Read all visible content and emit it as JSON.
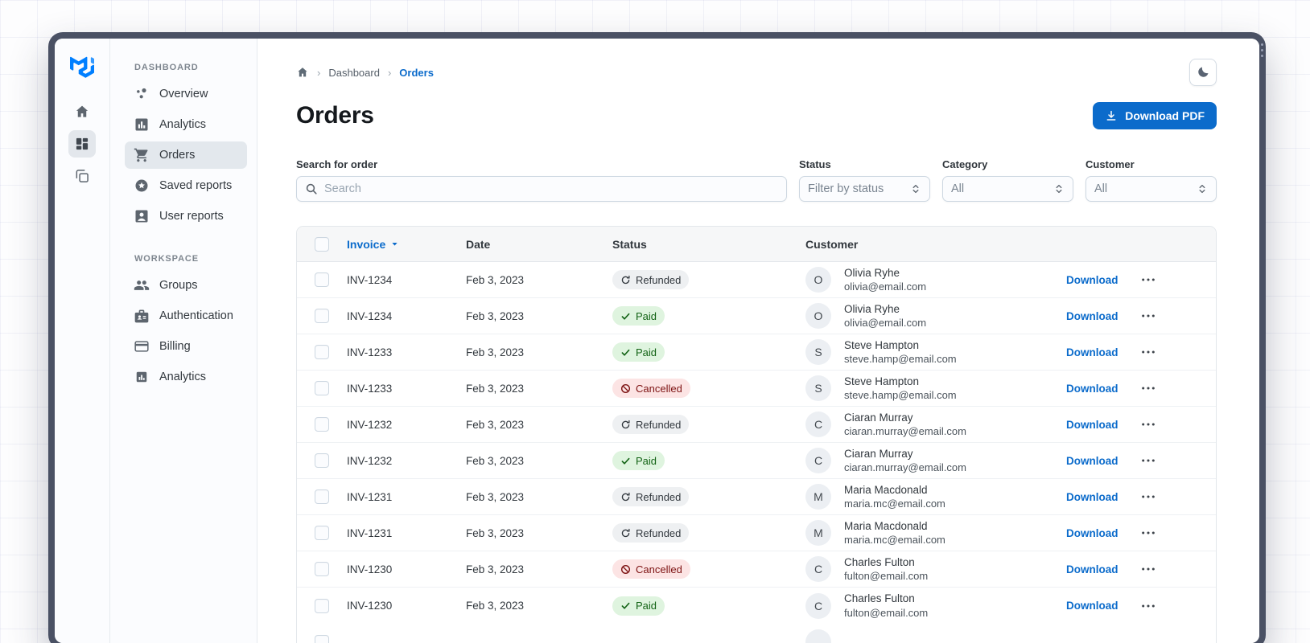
{
  "colors": {
    "accent": "#0b6bcb",
    "window_frame": "#4a5164",
    "selected_item_bg": "#e3e8ed"
  },
  "rail": {
    "items": [
      {
        "icon": "home-icon",
        "selected": false
      },
      {
        "icon": "dashboard-grid-icon",
        "selected": true
      },
      {
        "icon": "layers-icon",
        "selected": false
      }
    ]
  },
  "sidebar": {
    "sections": [
      {
        "title": "DASHBOARD",
        "items": [
          {
            "label": "Overview",
            "icon": "bubble-chart-icon",
            "selected": false
          },
          {
            "label": "Analytics",
            "icon": "bar-chart-icon",
            "selected": false
          },
          {
            "label": "Orders",
            "icon": "cart-icon",
            "selected": true
          },
          {
            "label": "Saved reports",
            "icon": "stars-icon",
            "selected": false
          },
          {
            "label": "User reports",
            "icon": "account-box-icon",
            "selected": false
          }
        ]
      },
      {
        "title": "WORKSPACE",
        "items": [
          {
            "label": "Groups",
            "icon": "people-icon",
            "selected": false
          },
          {
            "label": "Authentication",
            "icon": "badge-icon",
            "selected": false
          },
          {
            "label": "Billing",
            "icon": "credit-card-icon",
            "selected": false
          },
          {
            "label": "Analytics",
            "icon": "chart-small-icon",
            "selected": false
          }
        ]
      }
    ]
  },
  "breadcrumb": {
    "items": [
      "Dashboard",
      "Orders"
    ]
  },
  "header": {
    "title": "Orders",
    "download_button": "Download PDF"
  },
  "filters": {
    "search": {
      "label": "Search for order",
      "placeholder": "Search"
    },
    "selects": [
      {
        "label": "Status",
        "value": "Filter by status"
      },
      {
        "label": "Category",
        "value": "All"
      },
      {
        "label": "Customer",
        "value": "All"
      }
    ]
  },
  "table": {
    "columns": [
      "Invoice",
      "Date",
      "Status",
      "Customer"
    ],
    "sorted_by": "Invoice",
    "action_label": "Download",
    "status_variants": {
      "Paid": {
        "bg": "#dff4df",
        "text": "#136315",
        "icon": "check-icon"
      },
      "Refunded": {
        "bg": "#eef0f2",
        "text": "#32383e",
        "icon": "refresh-icon"
      },
      "Cancelled": {
        "bg": "#fce4e4",
        "text": "#7d1212",
        "icon": "block-icon"
      }
    },
    "rows": [
      {
        "invoice": "INV-1234",
        "date": "Feb 3, 2023",
        "status": "Refunded",
        "initial": "O",
        "name": "Olivia Ryhe",
        "email": "olivia@email.com"
      },
      {
        "invoice": "INV-1234",
        "date": "Feb 3, 2023",
        "status": "Paid",
        "initial": "O",
        "name": "Olivia Ryhe",
        "email": "olivia@email.com"
      },
      {
        "invoice": "INV-1233",
        "date": "Feb 3, 2023",
        "status": "Paid",
        "initial": "S",
        "name": "Steve Hampton",
        "email": "steve.hamp@email.com"
      },
      {
        "invoice": "INV-1233",
        "date": "Feb 3, 2023",
        "status": "Cancelled",
        "initial": "S",
        "name": "Steve Hampton",
        "email": "steve.hamp@email.com"
      },
      {
        "invoice": "INV-1232",
        "date": "Feb 3, 2023",
        "status": "Refunded",
        "initial": "C",
        "name": "Ciaran Murray",
        "email": "ciaran.murray@email.com"
      },
      {
        "invoice": "INV-1232",
        "date": "Feb 3, 2023",
        "status": "Paid",
        "initial": "C",
        "name": "Ciaran Murray",
        "email": "ciaran.murray@email.com"
      },
      {
        "invoice": "INV-1231",
        "date": "Feb 3, 2023",
        "status": "Refunded",
        "initial": "M",
        "name": "Maria Macdonald",
        "email": "maria.mc@email.com"
      },
      {
        "invoice": "INV-1231",
        "date": "Feb 3, 2023",
        "status": "Refunded",
        "initial": "M",
        "name": "Maria Macdonald",
        "email": "maria.mc@email.com"
      },
      {
        "invoice": "INV-1230",
        "date": "Feb 3, 2023",
        "status": "Cancelled",
        "initial": "C",
        "name": "Charles Fulton",
        "email": "fulton@email.com"
      },
      {
        "invoice": "INV-1230",
        "date": "Feb 3, 2023",
        "status": "Paid",
        "initial": "C",
        "name": "Charles Fulton",
        "email": "fulton@email.com"
      }
    ]
  }
}
